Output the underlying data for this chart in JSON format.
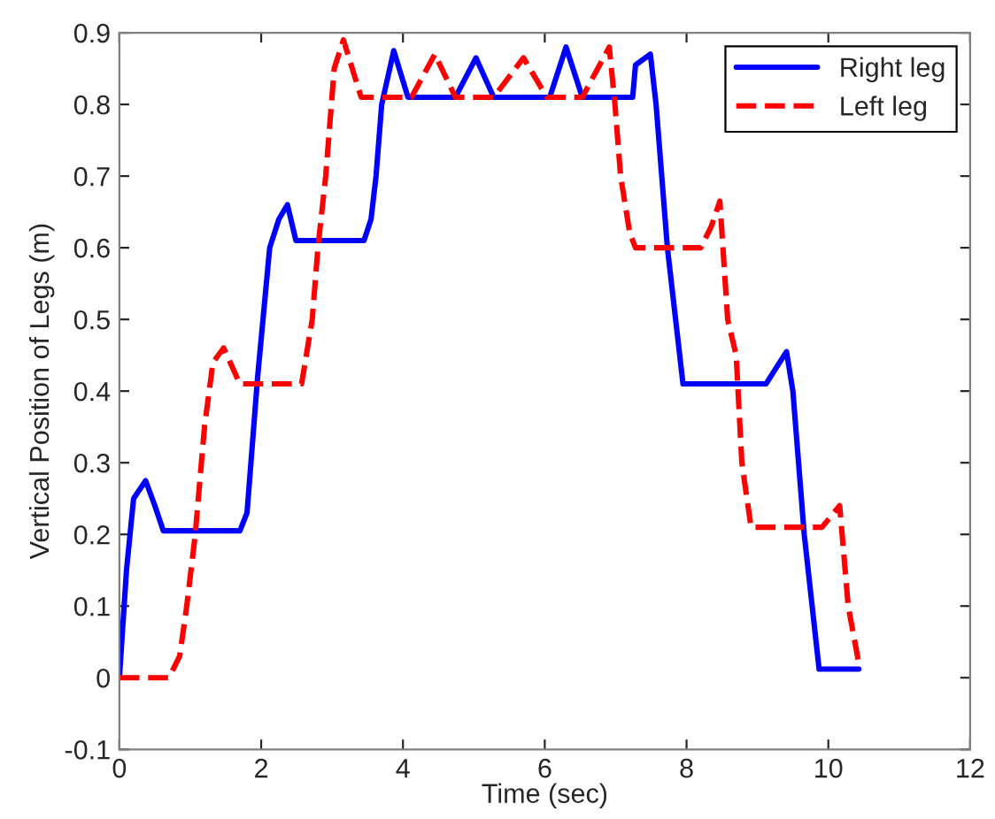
{
  "chart_data": {
    "type": "line",
    "xlabel": "Time (sec)",
    "ylabel": "Vertical Position of Legs (m)",
    "xlim": [
      0,
      12
    ],
    "xticks": [
      0,
      2,
      4,
      6,
      8,
      10,
      12
    ],
    "ylim": [
      -0.1,
      0.9
    ],
    "yticks": [
      -0.1,
      0,
      0.1,
      0.2,
      0.3,
      0.4,
      0.5,
      0.6,
      0.7,
      0.8,
      0.9
    ],
    "grid": false,
    "legend": "top right",
    "marker": "none",
    "series": [
      {
        "name": "Right leg",
        "color": "#0000ff",
        "line_style": "solid",
        "x": [
          0,
          0.1,
          0.2,
          0.37,
          0.5,
          0.62,
          1.7,
          1.8,
          1.95,
          2.12,
          2.25,
          2.37,
          2.49,
          3.45,
          3.55,
          3.62,
          3.7,
          3.87,
          4.07,
          4.74,
          5.03,
          5.28,
          6.07,
          6.3,
          6.53,
          7.24,
          7.28,
          7.49,
          7.57,
          7.73,
          7.95,
          9.12,
          9.41,
          9.5,
          9.66,
          9.87,
          10.43
        ],
        "values": [
          0,
          0.15,
          0.25,
          0.275,
          0.24,
          0.205,
          0.205,
          0.23,
          0.42,
          0.6,
          0.64,
          0.66,
          0.61,
          0.61,
          0.64,
          0.7,
          0.8,
          0.875,
          0.81,
          0.81,
          0.865,
          0.81,
          0.81,
          0.88,
          0.81,
          0.81,
          0.855,
          0.87,
          0.8,
          0.6,
          0.41,
          0.41,
          0.455,
          0.4,
          0.2,
          0.012,
          0.012
        ]
      },
      {
        "name": "Left leg",
        "color": "#ff0000",
        "line_style": "dashed",
        "x": [
          0,
          0.7,
          0.85,
          0.95,
          1.07,
          1.2,
          1.32,
          1.47,
          1.7,
          2.57,
          2.72,
          2.8,
          2.91,
          3.03,
          3.16,
          3.41,
          4.12,
          4.45,
          4.74,
          5.28,
          5.7,
          6.03,
          6.53,
          6.91,
          6.99,
          7.07,
          7.2,
          7.28,
          8.2,
          8.35,
          8.47,
          8.58,
          8.7,
          8.78,
          8.91,
          9.91,
          10.16,
          10.28,
          10.43
        ],
        "values": [
          0,
          0,
          0.03,
          0.1,
          0.2,
          0.35,
          0.44,
          0.46,
          0.41,
          0.41,
          0.5,
          0.6,
          0.7,
          0.85,
          0.89,
          0.81,
          0.81,
          0.87,
          0.81,
          0.81,
          0.865,
          0.81,
          0.81,
          0.88,
          0.8,
          0.7,
          0.62,
          0.6,
          0.6,
          0.63,
          0.665,
          0.5,
          0.45,
          0.3,
          0.21,
          0.21,
          0.24,
          0.1,
          0.02
        ]
      }
    ]
  }
}
